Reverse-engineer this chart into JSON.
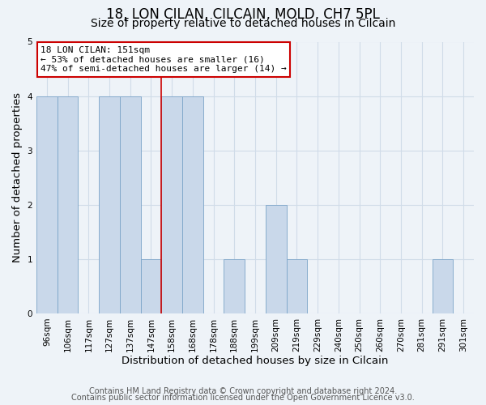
{
  "title": "18, LON CILAN, CILCAIN, MOLD, CH7 5PL",
  "subtitle": "Size of property relative to detached houses in Cilcain",
  "xlabel": "Distribution of detached houses by size in Cilcain",
  "ylabel": "Number of detached properties",
  "bar_labels": [
    "96sqm",
    "106sqm",
    "117sqm",
    "127sqm",
    "137sqm",
    "147sqm",
    "158sqm",
    "168sqm",
    "178sqm",
    "188sqm",
    "199sqm",
    "209sqm",
    "219sqm",
    "229sqm",
    "240sqm",
    "250sqm",
    "260sqm",
    "270sqm",
    "281sqm",
    "291sqm",
    "301sqm"
  ],
  "bar_values": [
    4,
    4,
    0,
    4,
    4,
    1,
    4,
    4,
    0,
    1,
    0,
    2,
    1,
    0,
    0,
    0,
    0,
    0,
    0,
    1,
    0
  ],
  "bar_color": "#c9d8ea",
  "bar_edge_color": "#7ba4c8",
  "vline_x_index": 5.5,
  "vline_color": "#cc0000",
  "annotation_title": "18 LON CILAN: 151sqm",
  "annotation_line1": "← 53% of detached houses are smaller (16)",
  "annotation_line2": "47% of semi-detached houses are larger (14) →",
  "annotation_box_color": "#ffffff",
  "annotation_box_edge": "#cc0000",
  "ylim": [
    0,
    5
  ],
  "yticks": [
    0,
    1,
    2,
    3,
    4,
    5
  ],
  "footer1": "Contains HM Land Registry data © Crown copyright and database right 2024.",
  "footer2": "Contains public sector information licensed under the Open Government Licence v3.0.",
  "background_color": "#eef3f8",
  "plot_background_color": "#eef3f8",
  "grid_color": "#d0dce8",
  "title_fontsize": 12,
  "subtitle_fontsize": 10,
  "axis_label_fontsize": 9.5,
  "tick_fontsize": 7.5,
  "footer_fontsize": 7,
  "annotation_fontsize": 8
}
